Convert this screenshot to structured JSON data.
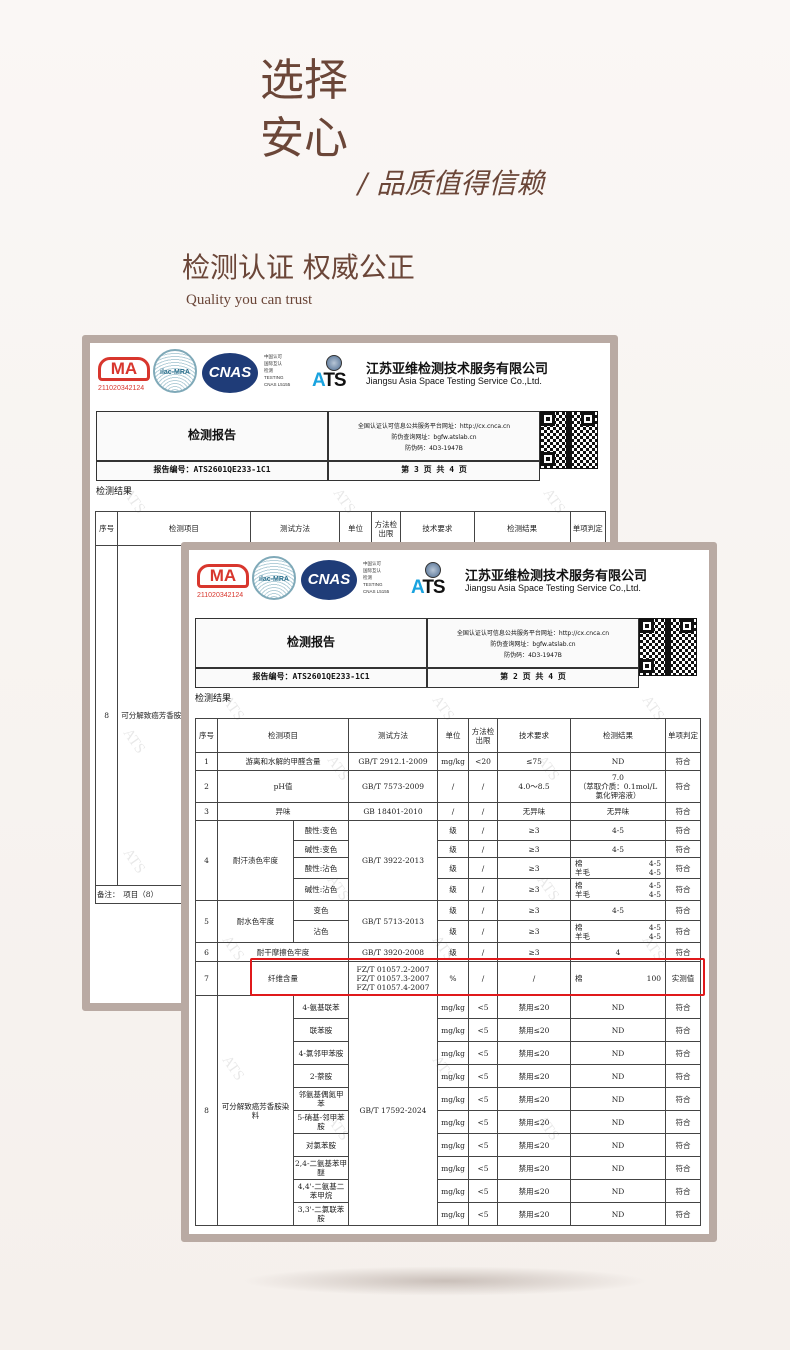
{
  "headline": {
    "line1": "选择",
    "line2": "安心",
    "tagline": "/ 品质值得信赖"
  },
  "section": {
    "title": "检测认证  权威公正",
    "subtitle": "Quality you can trust"
  },
  "colors": {
    "text": "#6b4638",
    "card_border": "#b9aaa3",
    "highlight": "#e0191b",
    "cma": "#d8362d",
    "cnas": "#1f3c78"
  },
  "report_common": {
    "cma_label": "MA",
    "cma_number": "211020342124",
    "ilac_label": "ilac-MRA",
    "cnas_label": "CNAS",
    "cnas_lines": [
      "中国认可",
      "国际互认",
      "检测",
      "TESTING",
      "CNAS L5155"
    ],
    "ats_label": "ATS",
    "company_cn": "江苏亚维检测技术服务有限公司",
    "company_en": "Jiangsu Asia Space Testing Service Co.,Ltd.",
    "report_title": "检测报告",
    "platform": "全国认证认可信息公共服务平台网址：http://cx.cnca.cn",
    "query": "防伪查询网址：bgfw.atslab.cn",
    "code": "防伪码：4D3-1947B",
    "report_no": "报告编号：ATS2601QE233-1C1",
    "results_label": "检测结果",
    "watermark": "ATS",
    "columns": [
      "序号",
      "检测项目",
      "测试方法",
      "单位",
      "方法检出限",
      "技术要求",
      "检测结果",
      "单项判定"
    ]
  },
  "back_report": {
    "page": "第 3 页 共 4 页",
    "row_no": "8",
    "row_item": "可分解致癌芳香胺染料",
    "remark": "备注：　项目（8）"
  },
  "front_report": {
    "page": "第 2 页 共 4 页",
    "groups": [
      {
        "no": "1",
        "item": "游离和水解的甲醛含量",
        "method": "GB/T 2912.1-2009",
        "subs": [
          {
            "unit": "mg/kg",
            "limit": "<20",
            "req": "≤75",
            "result": "ND",
            "verdict": "符合"
          }
        ]
      },
      {
        "no": "2",
        "item": "pH值",
        "method": "GB/T 7573-2009",
        "subs": [
          {
            "unit": "/",
            "limit": "/",
            "req": "4.0～8.5",
            "result": "7.0\n（萃取介质：0.1mol/L\n氯化钾溶液）",
            "verdict": "符合"
          }
        ]
      },
      {
        "no": "3",
        "item": "异味",
        "method": "GB 18401-2010",
        "subs": [
          {
            "unit": "/",
            "limit": "/",
            "req": "无异味",
            "result": "无异味",
            "verdict": "符合"
          }
        ]
      },
      {
        "no": "4",
        "item": "耐汗渍色牢度",
        "method": "GB/T 3922-2013",
        "subs": [
          {
            "sub": "酸性:变色",
            "unit": "级",
            "limit": "/",
            "req": "≥3",
            "result": "4-5",
            "verdict": "符合"
          },
          {
            "sub": "碱性:变色",
            "unit": "级",
            "limit": "/",
            "req": "≥3",
            "result": "4-5",
            "verdict": "符合"
          },
          {
            "sub": "酸性:沾色",
            "unit": "级",
            "limit": "/",
            "req": "≥3",
            "pairs": [
              [
                "棉",
                "4-5"
              ],
              [
                "羊毛",
                "4-5"
              ]
            ],
            "verdict": "符合"
          },
          {
            "sub": "碱性:沾色",
            "unit": "级",
            "limit": "/",
            "req": "≥3",
            "pairs": [
              [
                "棉",
                "4-5"
              ],
              [
                "羊毛",
                "4-5"
              ]
            ],
            "verdict": "符合"
          }
        ]
      },
      {
        "no": "5",
        "item": "耐水色牢度",
        "method": "GB/T 5713-2013",
        "subs": [
          {
            "sub": "变色",
            "unit": "级",
            "limit": "/",
            "req": "≥3",
            "result": "4-5",
            "verdict": "符合"
          },
          {
            "sub": "沾色",
            "unit": "级",
            "limit": "/",
            "req": "≥3",
            "pairs": [
              [
                "棉",
                "4-5"
              ],
              [
                "羊毛",
                "4-5"
              ]
            ],
            "verdict": "符合"
          }
        ]
      },
      {
        "no": "6",
        "item": "耐干摩擦色牢度",
        "method": "GB/T 3920-2008",
        "subs": [
          {
            "unit": "级",
            "limit": "/",
            "req": "≥3",
            "result": "4",
            "verdict": "符合"
          }
        ]
      },
      {
        "no": "7",
        "item": "纤维含量",
        "method": "FZ/T 01057.2-2007\nFZ/T 01057.3-2007\nFZ/T 01057.4-2007",
        "subs": [
          {
            "unit": "%",
            "limit": "/",
            "req": "/",
            "pairs": [
              [
                "棉",
                "100"
              ]
            ],
            "verdict": "实测值"
          }
        ]
      },
      {
        "no": "8",
        "item": "可分解致癌芳香胺染料",
        "method": "GB/T 17592-2024",
        "subs": [
          {
            "sub": "4-氨基联苯",
            "unit": "mg/kg",
            "limit": "<5",
            "req": "禁用≤20",
            "result": "ND",
            "verdict": "符合"
          },
          {
            "sub": "联苯胺",
            "unit": "mg/kg",
            "limit": "<5",
            "req": "禁用≤20",
            "result": "ND",
            "verdict": "符合"
          },
          {
            "sub": "4-氯邻甲苯胺",
            "unit": "mg/kg",
            "limit": "<5",
            "req": "禁用≤20",
            "result": "ND",
            "verdict": "符合"
          },
          {
            "sub": "2-萘胺",
            "unit": "mg/kg",
            "limit": "<5",
            "req": "禁用≤20",
            "result": "ND",
            "verdict": "符合"
          },
          {
            "sub": "邻氨基偶氮甲苯",
            "unit": "mg/kg",
            "limit": "<5",
            "req": "禁用≤20",
            "result": "ND",
            "verdict": "符合"
          },
          {
            "sub": "5-硝基-邻甲苯胺",
            "unit": "mg/kg",
            "limit": "<5",
            "req": "禁用≤20",
            "result": "ND",
            "verdict": "符合"
          },
          {
            "sub": "对氯苯胺",
            "unit": "mg/kg",
            "limit": "<5",
            "req": "禁用≤20",
            "result": "ND",
            "verdict": "符合"
          },
          {
            "sub": "2,4-二氨基苯甲醚",
            "unit": "mg/kg",
            "limit": "<5",
            "req": "禁用≤20",
            "result": "ND",
            "verdict": "符合"
          },
          {
            "sub": "4,4'-二氨基二苯甲烷",
            "unit": "mg/kg",
            "limit": "<5",
            "req": "禁用≤20",
            "result": "ND",
            "verdict": "符合"
          },
          {
            "sub": "3,3'-二氯联苯胺",
            "unit": "mg/kg",
            "limit": "<5",
            "req": "禁用≤20",
            "result": "ND",
            "verdict": "符合"
          }
        ]
      }
    ]
  }
}
